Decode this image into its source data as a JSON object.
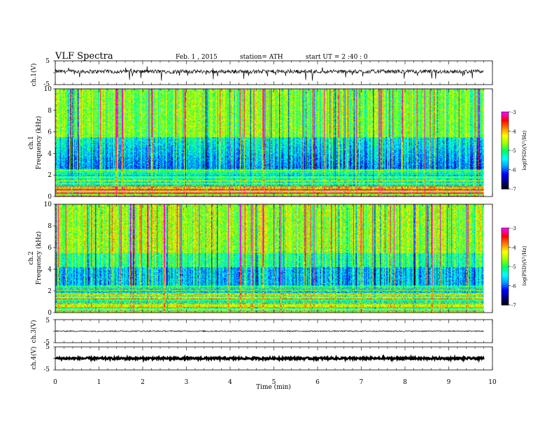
{
  "header": {
    "title": "VLF  Spectra",
    "date": "Feb. 1  , 2015",
    "station": "station= ATH",
    "start": "start  UT  =   2 :40 : 0"
  },
  "chart_data": [
    {
      "type": "line",
      "name": "ch1-waveform",
      "ylabel": "ch.1(V)",
      "ylim": [
        -5,
        5
      ],
      "yticks": [
        "5",
        "-5"
      ],
      "x_end_min": 9.8,
      "approx_mean_v": 0.5
    },
    {
      "type": "heatmap",
      "name": "ch1-spectrogram",
      "ylabel_top": "ch.1",
      "ylabel": "Frequency  (kHz)",
      "ylim": [
        0,
        10
      ],
      "yticks": [
        0,
        2,
        4,
        6,
        8,
        10
      ],
      "x_end_min": 9.8,
      "colorbar": {
        "label": "log(PSD)(V²/Hz)",
        "ticks": [
          "-3",
          "-4",
          "-5",
          "-6",
          "-7"
        ],
        "range": [
          -7,
          -3
        ]
      }
    },
    {
      "type": "heatmap",
      "name": "ch2-spectrogram",
      "ylabel_top": "ch.2",
      "ylabel": "Frequency  (kHz)",
      "ylim": [
        0,
        10
      ],
      "yticks": [
        0,
        2,
        4,
        6,
        8,
        10
      ],
      "x_end_min": 9.8,
      "colorbar": {
        "label": "log(PSD)(V²/Hz)",
        "ticks": [
          "-3",
          "-4",
          "-5",
          "-6",
          "-7"
        ],
        "range": [
          -7,
          -3
        ]
      }
    },
    {
      "type": "line",
      "name": "ch3-waveform",
      "ylabel": "ch.3(V)",
      "ylim": [
        -5,
        5
      ],
      "yticks": [
        "5",
        "-5"
      ],
      "x_end_min": 9.8,
      "approx_mean_v": 0.0
    },
    {
      "type": "line",
      "name": "ch4-waveform",
      "ylabel": "ch.4(V)",
      "ylim": [
        -5,
        5
      ],
      "yticks": [
        "5",
        "-5"
      ],
      "x_end_min": 9.8,
      "approx_mean_v": 0.0
    }
  ],
  "xaxis": {
    "label": "Time  (min)",
    "range": [
      0,
      10
    ],
    "ticks": [
      "0",
      "1",
      "2",
      "3",
      "4",
      "5",
      "6",
      "7",
      "8",
      "9",
      "10"
    ]
  },
  "colors": {
    "psd_scale": [
      "#000000",
      "#00007f",
      "#0000ff",
      "#00a0ff",
      "#00ffff",
      "#00ff60",
      "#a0ff00",
      "#ffff00",
      "#ff8000",
      "#ff0000",
      "#ff00ff"
    ]
  }
}
